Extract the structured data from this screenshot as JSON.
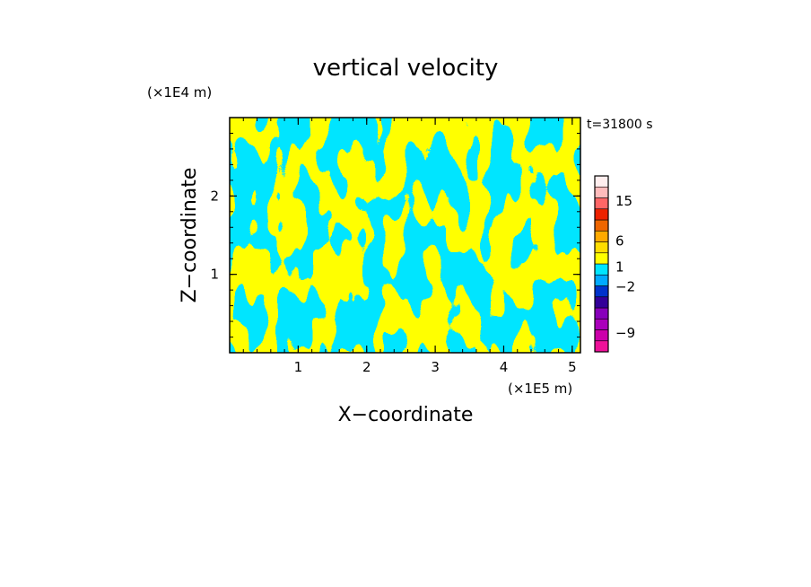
{
  "chart_data": {
    "type": "heatmap",
    "title": "vertical velocity",
    "xlabel": "X−coordinate",
    "ylabel": "Z−coordinate",
    "x_unit": "(×1E5 m)",
    "y_unit": "(×1E4 m)",
    "time_label": "t=31800 s",
    "xlim": [
      0,
      5.12
    ],
    "ylim": [
      0,
      3.0
    ],
    "x_ticks": [
      {
        "value": 1,
        "label": "1"
      },
      {
        "value": 2,
        "label": "2"
      },
      {
        "value": 3,
        "label": "3"
      },
      {
        "value": 4,
        "label": "4"
      },
      {
        "value": 5,
        "label": "5"
      }
    ],
    "y_ticks": [
      {
        "value": 1,
        "label": "1"
      },
      {
        "value": 2,
        "label": "2"
      }
    ],
    "field_colors": {
      "positive": "#ffff00",
      "negative": "#00e5ff"
    },
    "colorbar": {
      "levels": [
        {
          "color": "#ee1199"
        },
        {
          "color": "#cc00aa"
        },
        {
          "color": "#aa00bb"
        },
        {
          "color": "#8800bb"
        },
        {
          "color": "#330099"
        },
        {
          "color": "#0033cc"
        },
        {
          "color": "#00aaff"
        },
        {
          "color": "#00e5ff"
        },
        {
          "color": "#ffff00"
        },
        {
          "color": "#ffdd00"
        },
        {
          "color": "#ffaa00"
        },
        {
          "color": "#ee6600"
        },
        {
          "color": "#ee2200"
        },
        {
          "color": "#ff6666"
        },
        {
          "color": "#ffbbbb"
        },
        {
          "color": "#ffeeee"
        }
      ],
      "labels": [
        {
          "label": "−9",
          "level_index": 1.7
        },
        {
          "label": "−2",
          "level_index": 5.9
        },
        {
          "label": "1",
          "level_index": 7.7
        },
        {
          "label": "6",
          "level_index": 10.1
        },
        {
          "label": "15",
          "level_index": 13.7
        }
      ]
    }
  }
}
